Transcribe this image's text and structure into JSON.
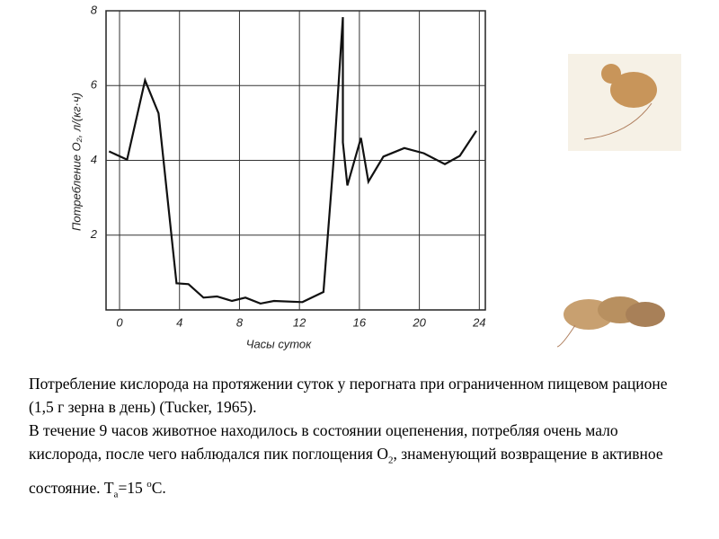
{
  "chart_data": {
    "type": "line",
    "y_label": "Потребление O₂, л/(кг·ч)",
    "x_label": "Часы суток",
    "x": [
      -0.7,
      0.5,
      1.7,
      2.6,
      3.8,
      4.6,
      5.6,
      6.5,
      7.5,
      8.4,
      9.4,
      10.3,
      12.2,
      13.6,
      14.3,
      14.9,
      14.9,
      15.2,
      16.1,
      16.6,
      17.6,
      19.0,
      20.3,
      21.7,
      22.7,
      23.8
    ],
    "values": [
      4.24,
      4.02,
      6.14,
      5.26,
      0.71,
      0.69,
      0.33,
      0.36,
      0.24,
      0.33,
      0.17,
      0.24,
      0.21,
      0.48,
      4.1,
      7.83,
      4.48,
      3.33,
      4.6,
      3.43,
      4.1,
      4.33,
      4.19,
      3.9,
      4.12,
      4.79
    ],
    "color": "#111111",
    "xlim": [
      -0.9,
      24.4
    ],
    "ylim": [
      0,
      8
    ],
    "xticks": [
      0,
      4,
      8,
      12,
      16,
      20,
      24
    ],
    "yticks": [
      2,
      4,
      6,
      8
    ],
    "grid": true
  },
  "caption": {
    "p1": "Потребление кислорода на протяжении суток у перогната при ограниченном пищевом рационе (1,5 г зерна в день) (Tucker, 1965).",
    "p2": [
      "В течение 9 часов животное находилось в состоянии оцепенения, потребляя очень мало кислорода, после чего наблюдался пик поглощения O",
      "2",
      ", знаменующий возвращение в активное состояние. T",
      "a",
      "=15 ",
      "o",
      "C."
    ]
  }
}
